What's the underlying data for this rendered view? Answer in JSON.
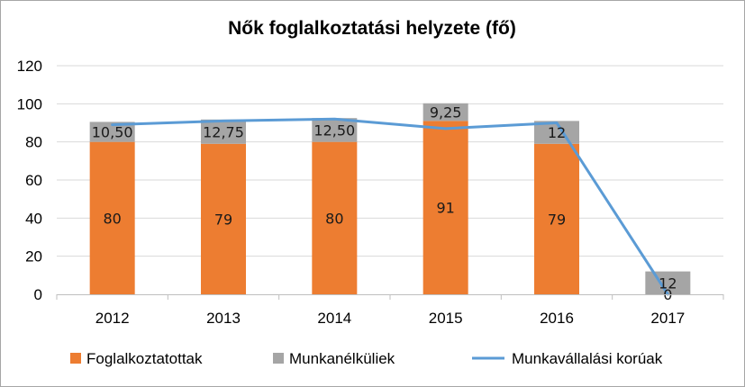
{
  "chart_data": {
    "type": "bar",
    "title": "Nők foglalkoztatási helyzete (fő)",
    "categories": [
      "2012",
      "2013",
      "2014",
      "2015",
      "2016",
      "2017"
    ],
    "ylim": [
      0,
      120
    ],
    "yticks": [
      0,
      20,
      40,
      60,
      80,
      100,
      120
    ],
    "grid": true,
    "legend_position": "bottom",
    "series": [
      {
        "name": "Foglalkoztatottak",
        "kind": "stacked-bar",
        "color": "#ED7D31",
        "values": [
          80,
          79,
          80,
          91,
          79,
          0
        ],
        "labels": [
          "80",
          "79",
          "80",
          "91",
          "79",
          "0"
        ]
      },
      {
        "name": "Munkanélküliek",
        "kind": "stacked-bar",
        "color": "#A5A5A5",
        "values": [
          10.5,
          12.75,
          12.5,
          9.25,
          12,
          12
        ],
        "labels": [
          "10,50",
          "12,75",
          "12,50",
          "9,25",
          "12",
          "12"
        ]
      },
      {
        "name": "Munkavállalási korúak",
        "kind": "line",
        "color": "#5B9BD5",
        "values": [
          89,
          91,
          92,
          87,
          90,
          0
        ]
      }
    ]
  }
}
